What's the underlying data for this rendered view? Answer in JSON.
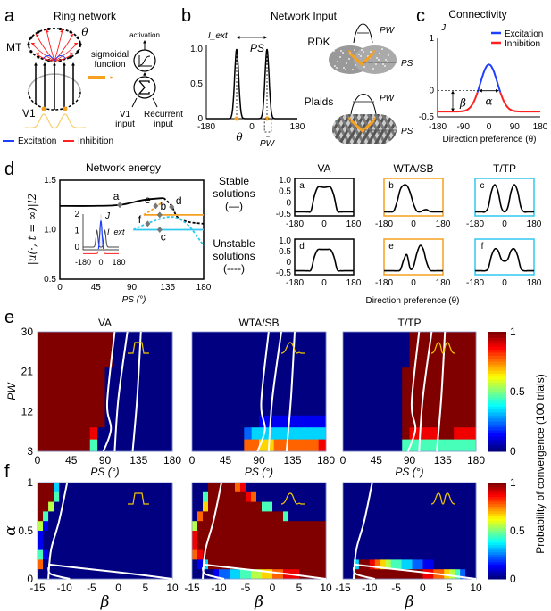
{
  "colors": {
    "excitation": "#1f3fff",
    "inhibition": "#ff2020",
    "orange": "#f5a020",
    "cyan": "#30c8f0",
    "inset_yellow": "#f0c800",
    "input_yellow": "#f5d070"
  },
  "a": {
    "label": "a",
    "title": "Ring network",
    "mt": "MT",
    "v1": "V1",
    "theta": "θ",
    "sigmoid": [
      "sigmoidal",
      "function"
    ],
    "activation": "activation",
    "v1_input": [
      "V1",
      "input"
    ],
    "recurrent_input": [
      "Recurrent",
      "input"
    ],
    "legend": [
      "Excitation",
      "Inhibition"
    ]
  },
  "b": {
    "label": "b",
    "title": "Network Input",
    "rdk": "RDK",
    "plaids": "Plaids",
    "pw": "PW",
    "ps": "PS"
  },
  "c": {
    "label": "c",
    "title": "Connectivity"
  },
  "d": {
    "label": "d",
    "title": "Network energy",
    "stable": [
      "Stable",
      "solutions",
      "(—)"
    ],
    "unstable": [
      "Unstable",
      "solutions",
      "(----)"
    ],
    "xlabel_small": "Direction preference (θ)"
  },
  "e": {
    "label": "e"
  },
  "f": {
    "label": "f"
  },
  "colorbar": {
    "label": "Probability of convergence (100 trials)",
    "ticks": [
      "1",
      "0.5",
      "0"
    ]
  },
  "chart_data": [
    {
      "id": "b",
      "type": "line",
      "ylabel": "I_ext",
      "xlabel": "θ",
      "xlim": [
        -180,
        180
      ],
      "ylim": [
        0,
        1
      ],
      "xticks": [
        "-180",
        "0",
        "180"
      ],
      "yticks": [
        "1.0",
        "0.5",
        "0"
      ],
      "peaks": [
        -60,
        60
      ],
      "peak_height": 1.0,
      "annotations": [
        "PS",
        "PW"
      ]
    },
    {
      "id": "c",
      "type": "line",
      "ylabel": "J",
      "xlabel": "Direction preference (θ)",
      "xlim": [
        -180,
        180
      ],
      "ylim": [
        -0.5,
        1
      ],
      "xticks": [
        "-180",
        "-90",
        "0",
        "90",
        "180"
      ],
      "yticks": [
        "1",
        "0",
        "-0.5"
      ],
      "legend": [
        "Excitation",
        "Inhibition"
      ],
      "legend_position": "top-right",
      "peak": 0.5,
      "baseline": -0.4,
      "annotations": [
        "β",
        "α"
      ]
    },
    {
      "id": "d-energy",
      "type": "line",
      "xlabel": "PS (°)",
      "ylabel": "|u(·, t = ∞)|l2",
      "xlim": [
        0,
        180
      ],
      "ylim": [
        0.5,
        1.5
      ],
      "xticks": [
        "0",
        "45",
        "90",
        "135",
        "180"
      ],
      "yticks": [
        "1.5",
        "1.0",
        "0.5"
      ],
      "series": [
        {
          "color": "black",
          "style": "solid",
          "points": [
            [
              0,
              1.24
            ],
            [
              40,
              1.24
            ],
            [
              75,
              1.25
            ],
            [
              105,
              1.3
            ],
            [
              130,
              1.32
            ]
          ]
        },
        {
          "color": "black",
          "style": "dashed",
          "points": [
            [
              130,
              1.32
            ],
            [
              140,
              1.24
            ],
            [
              147,
              1.13
            ],
            [
              160,
              1.08
            ],
            [
              180,
              1.06
            ]
          ]
        },
        {
          "color": "orange",
          "style": "solid",
          "points": [
            [
              105,
              1.15
            ],
            [
              180,
              1.15
            ]
          ]
        },
        {
          "color": "orange",
          "style": "dashed",
          "points": [
            [
              105,
              1.15
            ],
            [
              115,
              1.2
            ],
            [
              127,
              1.27
            ]
          ]
        },
        {
          "color": "cyan",
          "style": "solid",
          "points": [
            [
              92,
              1.0
            ],
            [
              180,
              1.0
            ]
          ]
        },
        {
          "color": "cyan",
          "style": "dashed",
          "points": [
            [
              92,
              1.0
            ],
            [
              115,
              1.08
            ],
            [
              140,
              1.13
            ],
            [
              160,
              1.05
            ],
            [
              180,
              0.84
            ]
          ]
        }
      ],
      "markers": [
        {
          "label": "a",
          "x": 75,
          "y": 1.25
        },
        {
          "label": "b",
          "x": 125,
          "y": 1.15
        },
        {
          "label": "c",
          "x": 125,
          "y": 1.0
        },
        {
          "label": "d",
          "x": 140,
          "y": 1.23
        },
        {
          "label": "e",
          "x": 120,
          "y": 1.24
        },
        {
          "label": "f",
          "x": 110,
          "y": 1.06
        }
      ],
      "inset": {
        "xticks": [
          "-180",
          "0",
          "180"
        ],
        "yticks": [
          "2",
          "1",
          "0"
        ],
        "labels": [
          "J",
          "I_ext"
        ]
      }
    },
    {
      "id": "d-solutions",
      "type": "line",
      "columns": [
        "VA",
        "WTA/SB",
        "T/TP"
      ],
      "xticks": [
        "-180",
        "0",
        "180"
      ],
      "yticks": [
        "1.0",
        "0.5",
        "0",
        "-0.5"
      ],
      "xlim": [
        -180,
        180
      ],
      "ylim": [
        -0.5,
        1.0
      ],
      "theta": [
        -180,
        -160,
        -140,
        -120,
        -100,
        -80,
        -60,
        -40,
        -20,
        0,
        20,
        40,
        60,
        80,
        100,
        120,
        140,
        160,
        180
      ],
      "profiles": [
        {
          "label": "a",
          "column": "VA",
          "values": [
            -0.4,
            -0.4,
            -0.4,
            -0.4,
            -0.4,
            -0.35,
            0.3,
            0.68,
            0.7,
            0.68,
            0.7,
            0.68,
            0.3,
            -0.35,
            -0.4,
            -0.4,
            -0.4,
            -0.4,
            -0.4
          ]
        },
        {
          "label": "b",
          "column": "WTA/SB",
          "values": [
            -0.4,
            -0.4,
            -0.4,
            -0.36,
            0.05,
            0.6,
            0.78,
            0.76,
            0.45,
            -0.05,
            -0.36,
            -0.4,
            -0.33,
            -0.3,
            -0.38,
            -0.4,
            -0.4,
            -0.4,
            -0.4
          ]
        },
        {
          "label": "c",
          "column": "T/TP",
          "values": [
            -0.4,
            -0.4,
            -0.4,
            -0.4,
            -0.2,
            0.5,
            0.8,
            0.5,
            -0.2,
            -0.4,
            -0.2,
            0.5,
            0.8,
            0.5,
            -0.2,
            -0.4,
            -0.4,
            -0.4,
            -0.4
          ]
        },
        {
          "label": "d",
          "column": "VA",
          "values": [
            -0.4,
            -0.4,
            -0.4,
            -0.4,
            -0.4,
            -0.35,
            0.25,
            0.58,
            0.6,
            0.6,
            0.6,
            0.58,
            0.25,
            -0.35,
            -0.4,
            -0.4,
            -0.4,
            -0.4,
            -0.4
          ]
        },
        {
          "label": "e",
          "column": "WTA/SB",
          "values": [
            -0.4,
            -0.4,
            -0.4,
            -0.4,
            -0.4,
            -0.35,
            0.1,
            0.35,
            -0.3,
            -0.2,
            0.4,
            0.78,
            0.6,
            0.0,
            -0.36,
            -0.4,
            -0.4,
            -0.4,
            -0.4
          ]
        },
        {
          "label": "f",
          "column": "T/TP",
          "values": [
            -0.4,
            -0.4,
            -0.4,
            -0.4,
            -0.3,
            0.3,
            0.62,
            0.55,
            0.15,
            0.05,
            0.15,
            0.55,
            0.62,
            0.3,
            -0.3,
            -0.4,
            -0.4,
            -0.4,
            -0.4
          ]
        }
      ]
    },
    {
      "id": "e",
      "type": "heatmap",
      "titles": [
        "VA",
        "WTA/SB",
        "T/TP"
      ],
      "xlabel": "PS (°)",
      "ylabel": "PW",
      "xlim": [
        0,
        180
      ],
      "ylim": [
        3,
        30
      ],
      "xticks": [
        "0",
        "45",
        "90",
        "135",
        "180"
      ],
      "yticks": [
        "30",
        "21",
        "12",
        "3"
      ],
      "colormap": "jet",
      "clim": [
        0,
        1
      ],
      "value_scale": "digit/9, rows top (PW=30) to bottom (PW=3), columns PS 0-180",
      "maps": [
        [
          "999999999900000000",
          "999999999900000000",
          "999999999900000000",
          "999999999000000000",
          "999999999000000000",
          "999999999000000000",
          "999999999000000000",
          "999999999000000000",
          "999999980000000000",
          "999999940000000000"
        ],
        [
          "000000000000000000",
          "000000000000000000",
          "000000000000000000",
          "000000000000000000",
          "000000000000000000",
          "000000000000000000",
          "000000000000000000",
          "000000000111111111",
          "000000023333333333",
          "000000077667777778"
        ],
        [
          "000000000999999999",
          "000000000999999999",
          "000000000999999999",
          "000000009999999999",
          "000000009999999999",
          "000000009999999999",
          "000000009999999999",
          "000000009999999999",
          "000000009888899888",
          "000000004444444444"
        ]
      ],
      "contours": [
        [
          [
            88,
            3
          ],
          [
            98,
            8
          ],
          [
            93,
            14
          ],
          [
            103,
            30
          ]
        ],
        [
          [
            103,
            3
          ],
          [
            108,
            15
          ],
          [
            120,
            30
          ]
        ],
        [
          [
            127,
            3
          ],
          [
            133,
            15
          ],
          [
            138,
            30
          ]
        ]
      ]
    },
    {
      "id": "f",
      "type": "heatmap",
      "xlabel": "β",
      "ylabel": "α",
      "xlim": [
        -15,
        10
      ],
      "ylim": [
        0,
        1
      ],
      "xticks": [
        "-15",
        "-10",
        "-5",
        "0",
        "5",
        "10"
      ],
      "yticks": [
        "1",
        "0.5",
        "0"
      ],
      "colormap": "jet",
      "clim": [
        0,
        1
      ],
      "value_scale": "digit/9, rows top (α=1) to bottom (α=0), columns β -15 to 10",
      "maps": [
        [
          "9993000000000000000000000",
          "9994000000000000000000000",
          "9950000000000000000000000",
          "9400000000000000000000000",
          "5100000000000000000000000",
          "1000000000000000000000000",
          "1000000000000000000000000",
          "4100000000000000000000000",
          "7000000000000000000000000",
          "0000000000000000000000000"
        ],
        [
          "0009999978000000000000000",
          "0049999999870000000000000",
          "0069999999999440000000000",
          "0799999999999999940000000",
          "5999999999999999999999999",
          "8999999999999999999999999",
          "8999999999999999999999999",
          "7899999999999999999999999",
          "0139999999999999999999999",
          "0000122334455667788899999"
        ],
        [
          "0000000000000000000000000",
          "0000000000000000000000000",
          "0000000000000000000000000",
          "0000000000000000000000000",
          "0000000000000000000000000",
          "0000000000000000000000000",
          "0000000000000000000000000",
          "0000000000000000000000000",
          "0039987654433221100000000",
          "0099999999999998877654200"
        ]
      ],
      "contours": [
        [
          [
            -13,
            0
          ],
          [
            -12.5,
            0.3
          ],
          [
            -11,
            0.6
          ],
          [
            -9.5,
            1
          ]
        ],
        [
          [
            -13,
            0.15
          ],
          [
            -5,
            0.1
          ],
          [
            3,
            0.05
          ],
          [
            10,
            0
          ]
        ],
        [
          [
            -13,
            0.12
          ],
          [
            -12.5,
            0.05
          ],
          [
            -9,
            0
          ]
        ]
      ]
    }
  ]
}
